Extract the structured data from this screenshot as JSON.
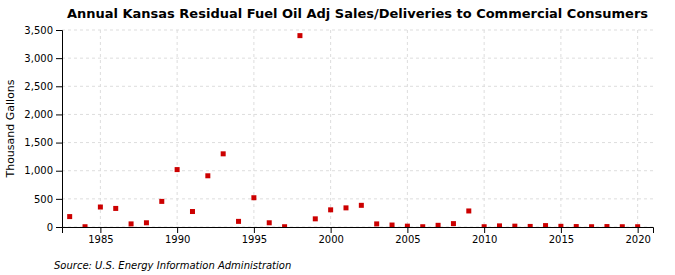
{
  "chart_data": {
    "type": "scatter",
    "title": "Annual Kansas Residual Fuel Oil Adj Sales/Deliveries to Commercial Consumers",
    "ylabel": "Thousand Gallons",
    "source": "Source: U.S. Energy Information Administration",
    "x": [
      1983,
      1984,
      1985,
      1986,
      1987,
      1988,
      1989,
      1990,
      1991,
      1992,
      1993,
      1994,
      1995,
      1996,
      1997,
      1998,
      1999,
      2000,
      2001,
      2002,
      2003,
      2004,
      2005,
      2006,
      2007,
      2008,
      2009,
      2010,
      2011,
      2012,
      2013,
      2014,
      2015,
      2016,
      2017,
      2018,
      2019,
      2020
    ],
    "values": [
      185,
      5,
      355,
      330,
      55,
      75,
      455,
      1020,
      275,
      910,
      1300,
      100,
      520,
      75,
      5,
      3400,
      145,
      305,
      340,
      385,
      55,
      35,
      15,
      5,
      30,
      60,
      285,
      5,
      20,
      15,
      10,
      25,
      12,
      8,
      5,
      8,
      5,
      5
    ],
    "color": "#cc0000",
    "marker": "square",
    "xlim": [
      1982.5,
      2021
    ],
    "xticks": [
      1985,
      1990,
      1995,
      2000,
      2005,
      2010,
      2015,
      2020
    ],
    "ylim": [
      0,
      3500
    ],
    "yticks": [
      0,
      500,
      {
        "value": 1000,
        "label": "1,000"
      },
      {
        "value": 1500,
        "label": "1,500"
      },
      {
        "value": 2000,
        "label": "2,000"
      },
      {
        "value": 2500,
        "label": "2,500"
      },
      {
        "value": 3000,
        "label": "3,000"
      },
      {
        "value": 3500,
        "label": "3,500"
      }
    ],
    "grid": true
  }
}
